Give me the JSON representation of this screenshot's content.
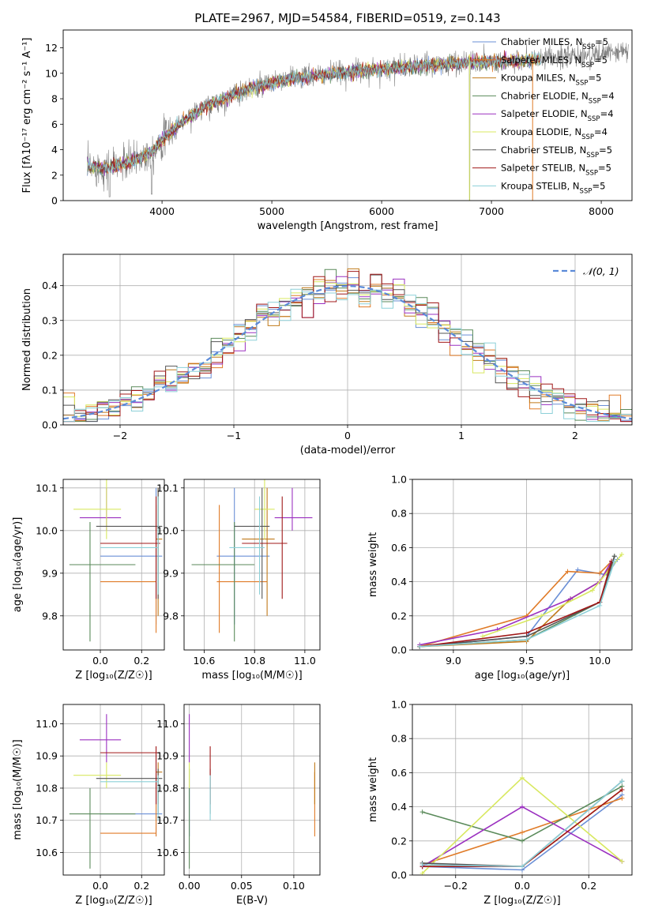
{
  "figure_title": "PLATE=2967, MJD=54584, FIBERID=0519, z=0.143",
  "models": [
    {
      "name": "Chabrier MILES",
      "nssp": "5",
      "color": "#6a8fd6",
      "age": 9.94,
      "age_lo": 9.78,
      "age_hi": 10.1,
      "Z": 0.27,
      "Z_lo": 0.0,
      "Z_hi": 0.3,
      "mass": 10.72,
      "mass_lo": 10.65,
      "mass_hi": 10.86,
      "ebv": 0.0
    },
    {
      "name": "Salpeter MILES",
      "nssp": "5",
      "color": "#e07b28",
      "age": 9.88,
      "age_lo": 9.76,
      "age_hi": 10.06,
      "Z": 0.27,
      "Z_lo": 0.0,
      "Z_hi": 0.27,
      "mass": 10.66,
      "mass_lo": 10.65,
      "mass_hi": 10.85,
      "ebv": 0.12
    },
    {
      "name": "Kroupa MILES",
      "nssp": "5",
      "color": "#c07a1a",
      "age": 9.98,
      "age_lo": 9.8,
      "age_hi": 10.1,
      "Z": 0.28,
      "Z_lo": 0.27,
      "Z_hi": 0.3,
      "mass": 10.85,
      "mass_lo": 10.75,
      "mass_hi": 10.88,
      "ebv": 0.12
    },
    {
      "name": "Chabrier ELODIE",
      "nssp": "4",
      "color": "#5a8a5a",
      "age": 9.92,
      "age_lo": 9.74,
      "age_hi": 10.02,
      "Z": -0.05,
      "Z_lo": -0.15,
      "Z_hi": 0.17,
      "mass": 10.72,
      "mass_lo": 10.55,
      "mass_hi": 10.8,
      "ebv": 0.0
    },
    {
      "name": "Salpeter ELODIE",
      "nssp": "4",
      "color": "#9b30c0",
      "age": 10.03,
      "age_lo": 10.0,
      "age_hi": 10.1,
      "Z": 0.03,
      "Z_lo": -0.1,
      "Z_hi": 0.1,
      "mass": 10.95,
      "mass_lo": 10.88,
      "mass_hi": 11.03,
      "ebv": 0.0
    },
    {
      "name": "Kroupa ELODIE",
      "nssp": "4",
      "color": "#d8e860",
      "age": 10.05,
      "age_lo": 9.98,
      "age_hi": 10.12,
      "Z": 0.03,
      "Z_lo": -0.13,
      "Z_hi": 0.1,
      "mass": 10.84,
      "mass_lo": 10.8,
      "mass_hi": 10.88,
      "ebv": 0.0
    },
    {
      "name": "Chabrier STELIB",
      "nssp": "5",
      "color": "#555555",
      "age": 10.01,
      "age_lo": 9.84,
      "age_hi": 10.1,
      "Z": 0.28,
      "Z_lo": -0.02,
      "Z_hi": 0.3,
      "mass": 10.83,
      "mass_lo": 10.72,
      "mass_hi": 10.86,
      "ebv": 0.02
    },
    {
      "name": "Salpeter STELIB",
      "nssp": "5",
      "color": "#a01818",
      "age": 9.97,
      "age_lo": 9.84,
      "age_hi": 10.08,
      "Z": 0.27,
      "Z_lo": 0.0,
      "Z_hi": 0.29,
      "mass": 10.91,
      "mass_lo": 10.75,
      "mass_hi": 10.93,
      "ebv": 0.02
    },
    {
      "name": "Kroupa STELIB",
      "nssp": "5",
      "color": "#8cd0d8",
      "age": 9.96,
      "age_lo": 9.85,
      "age_hi": 10.08,
      "Z": 0.28,
      "Z_lo": 0.0,
      "Z_hi": 0.28,
      "mass": 10.82,
      "mass_lo": 10.7,
      "mass_hi": 10.84,
      "ebv": 0.02
    }
  ],
  "chart_data": [
    {
      "type": "line",
      "title": "PLATE=2967, MJD=54584, FIBERID=0519, z=0.143",
      "xlabel": "wavelength [Angstrom, rest frame]",
      "ylabel": "Flux [fλ10⁻¹⁷ erg cm⁻² s⁻¹ A⁻¹]",
      "xlim": [
        3100,
        8280
      ],
      "ylim": [
        0,
        13.4
      ],
      "xticks": [
        "4000",
        "5000",
        "6000",
        "7000",
        "8000"
      ],
      "yticks": [
        "0",
        "2",
        "4",
        "6",
        "8",
        "10",
        "12"
      ],
      "data_color": "#808080",
      "legend_position": "right",
      "spectrum_shape": [
        [
          3320,
          2.7
        ],
        [
          3500,
          2.6
        ],
        [
          3700,
          3.0
        ],
        [
          3900,
          3.8
        ],
        [
          4050,
          5.2
        ],
        [
          4200,
          6.3
        ],
        [
          4400,
          7.4
        ],
        [
          4600,
          8.1
        ],
        [
          4800,
          8.8
        ],
        [
          5000,
          9.2
        ],
        [
          5200,
          9.6
        ],
        [
          5500,
          9.9
        ],
        [
          5800,
          10.2
        ],
        [
          6100,
          10.4
        ],
        [
          6400,
          10.6
        ],
        [
          6700,
          10.8
        ],
        [
          7000,
          10.9
        ],
        [
          7300,
          11.0
        ],
        [
          7700,
          11.3
        ],
        [
          8000,
          11.5
        ],
        [
          8200,
          11.7
        ]
      ]
    },
    {
      "type": "histogram",
      "xlabel": "(data-model)/error",
      "ylabel": "Normed distribution",
      "xlim": [
        -2.5,
        2.5
      ],
      "ylim": [
        0,
        0.49
      ],
      "xticks": [
        "−2",
        "−1",
        "0",
        "1",
        "2"
      ],
      "yticks": [
        "0.0",
        "0.1",
        "0.2",
        "0.3",
        "0.4"
      ],
      "reference_label": "𝒩(0, 1)",
      "reference_color": "#5b8ad8",
      "bin_width": 0.1,
      "legend_position": "top-right"
    },
    {
      "type": "scatter",
      "xlabel": "Z [log₁₀(Z/Z☉)]",
      "ylabel": "age  [log₁₀(age/yr)]",
      "xlim": [
        -0.18,
        0.31
      ],
      "ylim": [
        9.72,
        10.12
      ],
      "xticks": [
        "0.0",
        "0.2"
      ],
      "yticks": [
        "9.8",
        "9.9",
        "10.0",
        "10.1"
      ]
    },
    {
      "type": "scatter",
      "xlabel": "mass [log₁₀(M/M☉)]",
      "ylabel": "",
      "xlim": [
        10.52,
        11.06
      ],
      "ylim": [
        9.72,
        10.12
      ],
      "xticks": [
        "10.6",
        "10.8",
        "11.0"
      ],
      "yticks": [
        "9.8",
        "9.9",
        "10.0",
        "10.1"
      ]
    },
    {
      "type": "line",
      "xlabel": "age  [log₁₀(age/yr)]",
      "ylabel": "mass weight",
      "xlim": [
        8.72,
        10.22
      ],
      "ylim": [
        0,
        1
      ],
      "xticks": [
        "9.0",
        "9.5",
        "10.0"
      ],
      "yticks": [
        "0.0",
        "0.2",
        "0.4",
        "0.6",
        "0.8",
        "1.0"
      ]
    },
    {
      "type": "scatter",
      "xlabel": "Z [log₁₀(Z/Z☉)]",
      "ylabel": "mass [log₁₀(M/M☉)]",
      "xlim": [
        -0.18,
        0.31
      ],
      "ylim": [
        10.53,
        11.06
      ],
      "xticks": [
        "0.0",
        "0.2"
      ],
      "yticks": [
        "10.6",
        "10.7",
        "10.8",
        "10.9",
        "11.0"
      ]
    },
    {
      "type": "scatter",
      "xlabel": "E(B-V)",
      "ylabel": "",
      "xlim": [
        -0.005,
        0.125
      ],
      "ylim": [
        10.53,
        11.06
      ],
      "xticks": [
        "0.00",
        "0.05",
        "0.10"
      ],
      "yticks": [
        "10.6",
        "10.7",
        "10.8",
        "10.9",
        "11.0"
      ]
    },
    {
      "type": "line",
      "xlabel": "Z [log₁₀(Z/Z☉)]",
      "ylabel": "mass weight",
      "xlim": [
        -0.33,
        0.33
      ],
      "ylim": [
        0,
        1
      ],
      "xticks": [
        "−0.2",
        "0.0",
        "0.2"
      ],
      "yticks": [
        "0.0",
        "0.2",
        "0.4",
        "0.6",
        "0.8",
        "1.0"
      ]
    }
  ],
  "age_weights": [
    [
      [
        8.77,
        0.02
      ],
      [
        9.5,
        0.08
      ],
      [
        9.85,
        0.47
      ],
      [
        10.05,
        0.44
      ],
      [
        10.12,
        0.53
      ]
    ],
    [
      [
        8.77,
        0.02
      ],
      [
        9.5,
        0.2
      ],
      [
        9.78,
        0.46
      ],
      [
        10.0,
        0.45
      ],
      [
        10.08,
        0.52
      ]
    ],
    [
      [
        8.77,
        0.02
      ],
      [
        9.5,
        0.05
      ],
      [
        9.8,
        0.3
      ],
      [
        10.0,
        0.4
      ],
      [
        10.08,
        0.5
      ]
    ],
    [
      [
        8.77,
        0.02
      ],
      [
        9.5,
        0.06
      ],
      [
        10.0,
        0.28
      ],
      [
        10.1,
        0.55
      ]
    ],
    [
      [
        8.77,
        0.03
      ],
      [
        9.3,
        0.12
      ],
      [
        9.8,
        0.3
      ],
      [
        10.0,
        0.4
      ],
      [
        10.08,
        0.52
      ]
    ],
    [
      [
        9.2,
        0.08
      ],
      [
        9.6,
        0.2
      ],
      [
        9.95,
        0.35
      ],
      [
        10.15,
        0.56
      ]
    ],
    [
      [
        8.77,
        0.02
      ],
      [
        9.5,
        0.08
      ],
      [
        10.0,
        0.28
      ],
      [
        10.1,
        0.55
      ]
    ],
    [
      [
        8.77,
        0.02
      ],
      [
        9.5,
        0.1
      ],
      [
        10.0,
        0.28
      ],
      [
        10.08,
        0.52
      ]
    ],
    [
      [
        8.77,
        0.02
      ],
      [
        9.5,
        0.06
      ],
      [
        10.0,
        0.26
      ],
      [
        10.1,
        0.52
      ]
    ]
  ],
  "z_weights": [
    [
      [
        -0.3,
        0.05
      ],
      [
        0.0,
        0.03
      ],
      [
        0.3,
        0.47
      ]
    ],
    [
      [
        -0.3,
        0.06
      ],
      [
        0.0,
        0.25
      ],
      [
        0.3,
        0.45
      ]
    ],
    [
      [
        -0.3,
        0.05
      ],
      [
        0.0,
        0.05
      ],
      [
        0.3,
        0.5
      ]
    ],
    [
      [
        -0.3,
        0.37
      ],
      [
        0.0,
        0.2
      ],
      [
        0.3,
        0.52
      ]
    ],
    [
      [
        -0.3,
        0.05
      ],
      [
        0.0,
        0.4
      ],
      [
        0.3,
        0.08
      ]
    ],
    [
      [
        -0.3,
        0.01
      ],
      [
        0.0,
        0.57
      ],
      [
        0.3,
        0.08
      ]
    ],
    [
      [
        -0.3,
        0.07
      ],
      [
        0.0,
        0.05
      ],
      [
        0.3,
        0.55
      ]
    ],
    [
      [
        -0.3,
        0.05
      ],
      [
        0.0,
        0.05
      ],
      [
        0.3,
        0.5
      ]
    ],
    [
      [
        -0.3,
        0.06
      ],
      [
        0.0,
        0.05
      ],
      [
        0.3,
        0.55
      ]
    ]
  ]
}
